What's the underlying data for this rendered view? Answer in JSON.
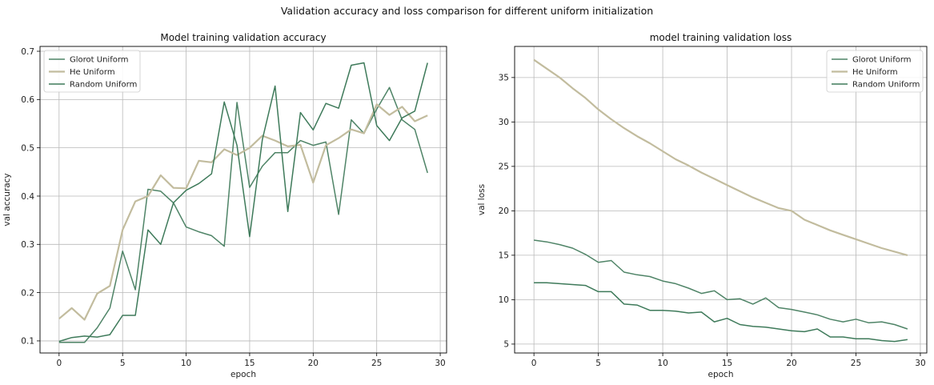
{
  "suptitle": "Validation accuracy and loss comparison for different uniform initialization",
  "colors": {
    "glorot": "#4f8467",
    "he": "#c2bc9e",
    "random": "#3e7a5a",
    "grid": "#b9b9b9",
    "axis": "#000000"
  },
  "chart_data": [
    {
      "type": "line",
      "title": "Model training validation accuracy",
      "xlabel": "epoch",
      "ylabel": "val accuracy",
      "xlim": [
        -1.5,
        30.5
      ],
      "ylim": [
        0.075,
        0.71
      ],
      "xticks": [
        0,
        5,
        10,
        15,
        20,
        25,
        30
      ],
      "yticks": [
        0.1,
        0.2,
        0.3,
        0.4,
        0.5,
        0.6,
        0.7
      ],
      "grid": true,
      "legend": "top-left",
      "x": [
        0,
        1,
        2,
        3,
        4,
        5,
        6,
        7,
        8,
        9,
        10,
        11,
        12,
        13,
        14,
        15,
        16,
        17,
        18,
        19,
        20,
        21,
        22,
        23,
        24,
        25,
        26,
        27,
        28,
        29
      ],
      "series": [
        {
          "name": "Glorot Uniform",
          "color_key": "glorot",
          "values": [
            0.097,
            0.097,
            0.097,
            0.127,
            0.168,
            0.286,
            0.206,
            0.414,
            0.41,
            0.386,
            0.336,
            0.326,
            0.318,
            0.296,
            0.594,
            0.418,
            0.462,
            0.49,
            0.49,
            0.515,
            0.505,
            0.512,
            0.362,
            0.558,
            0.53,
            0.58,
            0.625,
            0.558,
            0.538,
            0.448
          ]
        },
        {
          "name": "He Uniform",
          "color_key": "he",
          "values": [
            0.146,
            0.168,
            0.144,
            0.198,
            0.214,
            0.33,
            0.389,
            0.4,
            0.443,
            0.417,
            0.416,
            0.473,
            0.47,
            0.497,
            0.485,
            0.5,
            0.525,
            0.515,
            0.503,
            0.506,
            0.428,
            0.505,
            0.52,
            0.538,
            0.53,
            0.59,
            0.568,
            0.585,
            0.555,
            0.567
          ]
        },
        {
          "name": "Random Uniform",
          "color_key": "random",
          "values": [
            0.099,
            0.107,
            0.11,
            0.108,
            0.113,
            0.153,
            0.153,
            0.33,
            0.3,
            0.386,
            0.412,
            0.426,
            0.446,
            0.595,
            0.505,
            0.316,
            0.517,
            0.628,
            0.368,
            0.573,
            0.537,
            0.592,
            0.582,
            0.671,
            0.676,
            0.546,
            0.515,
            0.562,
            0.576,
            0.676
          ]
        }
      ]
    },
    {
      "type": "line",
      "title": "model training validation loss",
      "xlabel": "epoch",
      "ylabel": "val loss",
      "xlim": [
        -1.5,
        30.5
      ],
      "ylim": [
        4.0,
        38.5
      ],
      "xticks": [
        0,
        5,
        10,
        15,
        20,
        25,
        30
      ],
      "yticks": [
        5,
        10,
        15,
        20,
        25,
        30,
        35
      ],
      "grid": true,
      "legend": "top-right",
      "x": [
        0,
        1,
        2,
        3,
        4,
        5,
        6,
        7,
        8,
        9,
        10,
        11,
        12,
        13,
        14,
        15,
        16,
        17,
        18,
        19,
        20,
        21,
        22,
        23,
        24,
        25,
        26,
        27,
        28,
        29
      ],
      "series": [
        {
          "name": "Glorot Uniform",
          "color_key": "glorot",
          "values": [
            16.7,
            16.5,
            16.2,
            15.8,
            15.1,
            14.2,
            14.4,
            13.1,
            12.8,
            12.6,
            12.1,
            11.8,
            11.3,
            10.7,
            11.0,
            10.0,
            10.1,
            9.5,
            10.2,
            9.1,
            8.9,
            8.6,
            8.3,
            7.8,
            7.5,
            7.8,
            7.4,
            7.5,
            7.2,
            6.7
          ]
        },
        {
          "name": "He Uniform",
          "color_key": "he",
          "values": [
            37.0,
            36.0,
            35.0,
            33.8,
            32.7,
            31.4,
            30.3,
            29.3,
            28.4,
            27.6,
            26.7,
            25.8,
            25.1,
            24.3,
            23.6,
            22.9,
            22.2,
            21.5,
            20.9,
            20.3,
            20.0,
            19.0,
            18.4,
            17.8,
            17.3,
            16.8,
            16.3,
            15.8,
            15.4,
            15.0
          ]
        },
        {
          "name": "Random Uniform",
          "color_key": "random",
          "values": [
            11.9,
            11.9,
            11.8,
            11.7,
            11.6,
            10.9,
            10.9,
            9.5,
            9.4,
            8.8,
            8.8,
            8.7,
            8.5,
            8.6,
            7.5,
            7.9,
            7.2,
            7.0,
            6.9,
            6.7,
            6.5,
            6.4,
            6.7,
            5.8,
            5.8,
            5.6,
            5.6,
            5.4,
            5.3,
            5.5
          ]
        }
      ]
    }
  ]
}
